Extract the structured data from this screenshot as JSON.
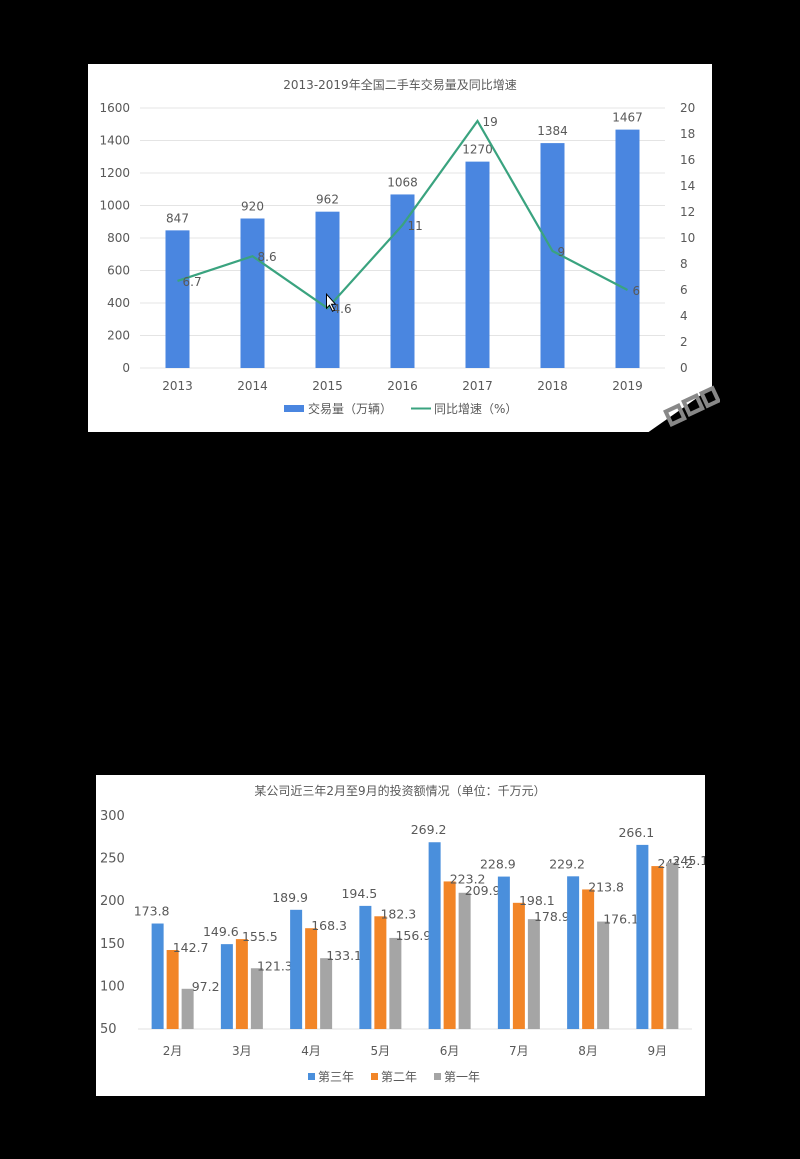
{
  "chart_data": [
    {
      "type": "bar+line",
      "title": "2013-2019年全国二手车交易量及同比增速",
      "categories": [
        "2013",
        "2014",
        "2015",
        "2016",
        "2017",
        "2018",
        "2019"
      ],
      "series": [
        {
          "name": "交易量（万辆）",
          "type": "bar",
          "axis": "left",
          "color": "#4a86e0",
          "values": [
            847,
            920,
            962,
            1068,
            1270,
            1384,
            1467
          ]
        },
        {
          "name": "同比增速（%）",
          "type": "line",
          "axis": "right",
          "color": "#3aa37f",
          "values": [
            6.7,
            8.6,
            4.6,
            11,
            19,
            9,
            6
          ]
        }
      ],
      "left_axis": {
        "ticks": [
          "0",
          "200",
          "400",
          "600",
          "800",
          "1000",
          "1200",
          "1400",
          "1600"
        ],
        "ylim": [
          0,
          1600
        ]
      },
      "right_axis": {
        "ticks": [
          "0",
          "2",
          "4",
          "6",
          "8",
          "10",
          "12",
          "14",
          "16",
          "18",
          "20"
        ],
        "ylim": [
          0,
          20
        ]
      },
      "xlabel": "",
      "ylabel": "",
      "grid": true,
      "legend_position": "bottom",
      "bar_labels": [
        "847",
        "920",
        "962",
        "1068",
        "1270",
        "1384",
        "1467"
      ],
      "line_labels": [
        "6.7",
        "8.6",
        "4.6",
        "11",
        "19",
        "9",
        "6"
      ]
    },
    {
      "type": "bar",
      "title": "某公司近三年2月至9月的投资额情况（单位：千万元）",
      "categories": [
        "2月",
        "3月",
        "4月",
        "5月",
        "6月",
        "7月",
        "8月",
        "9月"
      ],
      "series": [
        {
          "name": "第三年",
          "color": "#4a8fdc",
          "values": [
            173.8,
            149.6,
            189.9,
            194.5,
            269.2,
            228.9,
            229.2,
            266.1
          ]
        },
        {
          "name": "第二年",
          "color": "#f28527",
          "values": [
            142.7,
            155.5,
            168.3,
            182.3,
            223.2,
            198.1,
            213.8,
            241.2
          ]
        },
        {
          "name": "第一年",
          "color": "#a5a5a5",
          "values": [
            97.2,
            121.3,
            133.1,
            156.9,
            209.9,
            178.9,
            176.1,
            245.1
          ]
        }
      ],
      "y_axis": {
        "ticks": [
          "50",
          "100",
          "150",
          "200",
          "250",
          "300"
        ],
        "ylim": [
          50,
          300
        ]
      },
      "xlabel": "",
      "ylabel": "",
      "grid": false,
      "legend_position": "bottom"
    }
  ],
  "chart1": {
    "title": "2013-2019年全国二手车交易量及同比增速",
    "legend": {
      "bar": "交易量（万辆）",
      "line": "同比增速（%）"
    }
  },
  "chart2": {
    "title": "某公司近三年2月至9月的投资额情况（单位：千万元）",
    "legend": [
      "第三年",
      "第二年",
      "第一年"
    ]
  }
}
